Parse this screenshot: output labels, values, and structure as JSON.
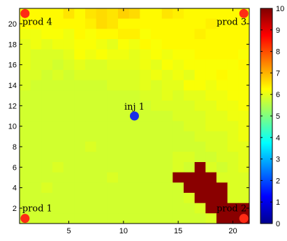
{
  "chart_data": {
    "type": "heatmap",
    "title": "",
    "xlabel": "",
    "ylabel": "",
    "grid": false,
    "xlim": [
      0.5,
      21.5
    ],
    "ylim": [
      0.5,
      21.5
    ],
    "x_ticks": [
      5,
      10,
      15,
      20
    ],
    "y_ticks": [
      2,
      4,
      6,
      8,
      10,
      12,
      14,
      16,
      18,
      20
    ],
    "colorbar": {
      "min": 0,
      "max": 10,
      "ticks": [
        0,
        1,
        2,
        3,
        4,
        5,
        6,
        7,
        8,
        9,
        10
      ],
      "colormap": "jet"
    },
    "grid_size": [
      21,
      21
    ],
    "row_order": "top-to-bottom (first row is y=21, last row is y=1)",
    "values": [
      [
        6.3,
        6.3,
        6.3,
        6.3,
        6.5,
        6.3,
        6.5,
        6.6,
        6.5,
        6.7,
        6.6,
        6.3,
        6.3,
        6.5,
        6.4,
        6.3,
        6.3,
        6.3,
        6.3,
        6.3,
        6.3
      ],
      [
        6.3,
        6.3,
        6.2,
        6.3,
        6.3,
        6.3,
        6.4,
        6.6,
        6.5,
        6.3,
        6.3,
        6.3,
        6.3,
        6.3,
        6.3,
        6.3,
        6.3,
        6.4,
        6.3,
        6.3,
        6.3
      ],
      [
        6.1,
        6.1,
        6.2,
        6.2,
        6.1,
        6.3,
        6.2,
        6.3,
        6.3,
        6.4,
        6.4,
        6.2,
        6.3,
        6.3,
        6.3,
        6.3,
        6.4,
        6.3,
        6.3,
        6.3,
        6.3
      ],
      [
        6.0,
        6.1,
        6.0,
        6.1,
        6.1,
        6.2,
        6.2,
        6.1,
        6.0,
        6.2,
        6.1,
        6.3,
        6.2,
        6.3,
        6.3,
        6.3,
        6.3,
        6.3,
        6.3,
        6.3,
        6.3
      ],
      [
        6.0,
        5.9,
        5.9,
        5.9,
        6.0,
        6.2,
        6.1,
        6.2,
        6.1,
        6.1,
        6.0,
        6.1,
        6.2,
        6.1,
        6.2,
        6.2,
        6.3,
        6.3,
        6.3,
        6.3,
        6.2
      ],
      [
        6.0,
        5.9,
        5.9,
        5.8,
        5.9,
        6.0,
        5.9,
        5.9,
        6.0,
        6.0,
        6.0,
        6.1,
        6.0,
        6.2,
        6.1,
        6.2,
        6.2,
        6.2,
        6.2,
        6.2,
        6.3
      ],
      [
        5.9,
        5.9,
        5.8,
        5.9,
        5.8,
        5.9,
        5.9,
        5.9,
        5.9,
        5.9,
        5.9,
        6.0,
        6.1,
        6.0,
        6.1,
        6.0,
        6.2,
        6.2,
        6.3,
        6.2,
        6.2
      ],
      [
        5.9,
        5.8,
        5.8,
        5.8,
        5.8,
        5.8,
        5.8,
        5.8,
        5.9,
        5.9,
        5.9,
        6.0,
        5.9,
        6.0,
        6.0,
        6.2,
        6.2,
        6.1,
        6.2,
        6.2,
        6.2
      ],
      [
        5.8,
        5.8,
        5.8,
        5.8,
        5.8,
        5.8,
        5.8,
        5.8,
        5.8,
        5.8,
        5.8,
        5.9,
        5.9,
        6.0,
        5.9,
        6.0,
        6.0,
        6.1,
        6.1,
        6.2,
        6.2
      ],
      [
        5.8,
        5.8,
        5.8,
        5.8,
        5.8,
        5.8,
        5.8,
        5.8,
        5.8,
        5.8,
        5.8,
        5.8,
        5.9,
        5.9,
        5.9,
        5.9,
        6.0,
        6.0,
        6.1,
        6.1,
        6.2
      ],
      [
        5.8,
        5.8,
        5.8,
        5.8,
        5.8,
        5.8,
        5.8,
        5.8,
        5.8,
        5.8,
        5.8,
        5.8,
        5.8,
        5.8,
        5.9,
        5.9,
        5.9,
        6.0,
        6.0,
        6.1,
        6.1
      ],
      [
        5.8,
        5.8,
        5.8,
        5.8,
        5.8,
        5.8,
        5.8,
        5.8,
        5.8,
        5.8,
        5.8,
        5.8,
        5.8,
        5.8,
        5.8,
        5.9,
        5.9,
        6.0,
        6.0,
        6.0,
        6.1
      ],
      [
        5.8,
        5.8,
        5.8,
        5.8,
        5.8,
        5.8,
        5.8,
        5.8,
        5.8,
        5.8,
        5.8,
        5.8,
        5.8,
        5.8,
        5.8,
        5.8,
        5.9,
        5.9,
        5.9,
        6.0,
        6.1
      ],
      [
        5.8,
        5.8,
        5.8,
        5.8,
        5.8,
        5.8,
        5.9,
        5.8,
        5.8,
        5.8,
        5.8,
        5.8,
        5.8,
        5.8,
        5.8,
        5.8,
        5.8,
        5.9,
        5.9,
        6.0,
        6.0
      ],
      [
        5.8,
        5.8,
        5.8,
        5.8,
        5.8,
        5.8,
        5.8,
        5.8,
        5.8,
        5.8,
        5.8,
        5.8,
        5.8,
        5.8,
        5.9,
        5.9,
        5.8,
        5.8,
        5.9,
        5.9,
        6.0
      ],
      [
        5.8,
        5.8,
        5.8,
        5.9,
        5.8,
        5.8,
        5.8,
        5.8,
        5.8,
        5.8,
        5.8,
        5.8,
        5.8,
        5.8,
        5.9,
        5.8,
        9.9,
        5.9,
        5.8,
        5.9,
        6.0
      ],
      [
        5.8,
        5.8,
        5.8,
        5.8,
        5.8,
        5.8,
        5.8,
        5.8,
        5.9,
        5.8,
        5.8,
        5.8,
        5.8,
        5.8,
        9.9,
        9.9,
        9.9,
        9.9,
        5.9,
        5.9,
        5.9
      ],
      [
        5.8,
        5.8,
        5.9,
        5.8,
        5.8,
        5.8,
        5.8,
        5.8,
        5.8,
        5.8,
        5.8,
        5.8,
        5.8,
        5.8,
        5.8,
        9.9,
        9.9,
        9.9,
        9.9,
        5.9,
        5.9
      ],
      [
        5.8,
        5.8,
        5.8,
        5.8,
        5.8,
        5.8,
        5.8,
        5.8,
        5.8,
        5.8,
        5.8,
        5.8,
        5.8,
        5.8,
        5.8,
        5.9,
        9.9,
        9.9,
        9.9,
        5.9,
        5.9
      ],
      [
        5.8,
        5.8,
        5.8,
        5.8,
        5.8,
        5.8,
        5.8,
        5.8,
        5.8,
        5.8,
        5.8,
        5.8,
        5.8,
        5.8,
        5.8,
        5.8,
        5.9,
        9.9,
        9.9,
        9.9,
        9.9
      ],
      [
        5.8,
        5.8,
        5.8,
        5.8,
        5.8,
        5.8,
        5.8,
        5.8,
        5.8,
        5.8,
        5.8,
        5.8,
        5.8,
        5.8,
        5.8,
        5.8,
        5.8,
        5.9,
        9.9,
        9.9,
        9.9
      ]
    ],
    "wells": [
      {
        "name": "prod 4",
        "type": "producer",
        "x": 1,
        "y": 21,
        "color": "#ff2a14"
      },
      {
        "name": "prod 3",
        "type": "producer",
        "x": 21,
        "y": 21,
        "color": "#ff2a14"
      },
      {
        "name": "inj 1",
        "type": "injector",
        "x": 11,
        "y": 11,
        "color": "#1a2fe6"
      },
      {
        "name": "prod 1",
        "type": "producer",
        "x": 1,
        "y": 1,
        "color": "#ff2a14"
      },
      {
        "name": "prod 2",
        "type": "producer",
        "x": 21,
        "y": 1,
        "color": "#ff2a14"
      }
    ]
  }
}
